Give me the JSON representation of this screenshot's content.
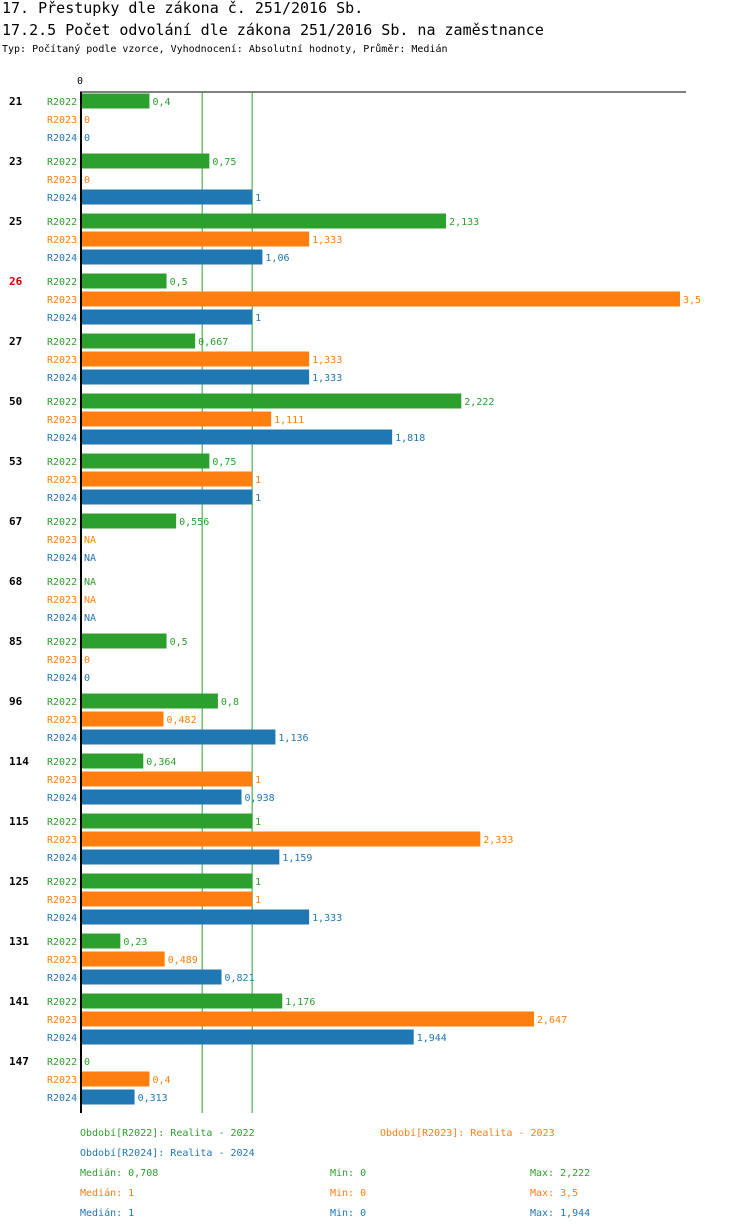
{
  "header": {
    "title": "17. Přestupky dle zákona č. 251/2016 Sb.",
    "subtitle": "17.2.5 Počet odvolání dle zákona 251/2016 Sb. na zaměstnance",
    "type_line": "Typ: Počítaný podle vzorce, Vyhodnocení: Absolutní hodnoty, Průměr: Medián"
  },
  "colors": {
    "R2022": "#2ca02c",
    "R2023": "#ff7f0e",
    "R2024": "#1f77b4",
    "highlight": "#cc0000"
  },
  "chart_data": {
    "type": "bar",
    "orientation": "horizontal",
    "axis_zero_label": "0",
    "xlim": [
      0,
      3.5
    ],
    "series_names": [
      "R2022",
      "R2023",
      "R2024"
    ],
    "highlighted_category": "26",
    "median_lines": [
      0.708,
      1
    ],
    "categories": [
      {
        "name": "21",
        "values": [
          0.4,
          0,
          0
        ],
        "labels": [
          "0,4",
          "0",
          "0"
        ]
      },
      {
        "name": "23",
        "values": [
          0.75,
          0,
          1
        ],
        "labels": [
          "0,75",
          "0",
          "1"
        ]
      },
      {
        "name": "25",
        "values": [
          2.133,
          1.333,
          1.06
        ],
        "labels": [
          "2,133",
          "1,333",
          "1,06"
        ]
      },
      {
        "name": "26",
        "values": [
          0.5,
          3.5,
          1
        ],
        "labels": [
          "0,5",
          "3,5",
          "1"
        ]
      },
      {
        "name": "27",
        "values": [
          0.667,
          1.333,
          1.333
        ],
        "labels": [
          "0,667",
          "1,333",
          "1,333"
        ]
      },
      {
        "name": "50",
        "values": [
          2.222,
          1.111,
          1.818
        ],
        "labels": [
          "2,222",
          "1,111",
          "1,818"
        ]
      },
      {
        "name": "53",
        "values": [
          0.75,
          1,
          1
        ],
        "labels": [
          "0,75",
          "1",
          "1"
        ]
      },
      {
        "name": "67",
        "values": [
          0.556,
          null,
          null
        ],
        "labels": [
          "0,556",
          "NA",
          "NA"
        ]
      },
      {
        "name": "68",
        "values": [
          null,
          null,
          null
        ],
        "labels": [
          "NA",
          "NA",
          "NA"
        ]
      },
      {
        "name": "85",
        "values": [
          0.5,
          0,
          0
        ],
        "labels": [
          "0,5",
          "0",
          "0"
        ]
      },
      {
        "name": "96",
        "values": [
          0.8,
          0.482,
          1.136
        ],
        "labels": [
          "0,8",
          "0,482",
          "1,136"
        ]
      },
      {
        "name": "114",
        "values": [
          0.364,
          1,
          0.938
        ],
        "labels": [
          "0,364",
          "1",
          "0,938"
        ]
      },
      {
        "name": "115",
        "values": [
          1,
          2.333,
          1.159
        ],
        "labels": [
          "1",
          "2,333",
          "1,159"
        ]
      },
      {
        "name": "125",
        "values": [
          1,
          1,
          1.333
        ],
        "labels": [
          "1",
          "1",
          "1,333"
        ]
      },
      {
        "name": "131",
        "values": [
          0.23,
          0.489,
          0.821
        ],
        "labels": [
          "0,23",
          "0,489",
          "0,821"
        ]
      },
      {
        "name": "141",
        "values": [
          1.176,
          2.647,
          1.944
        ],
        "labels": [
          "1,176",
          "2,647",
          "1,944"
        ]
      },
      {
        "name": "147",
        "values": [
          0,
          0.4,
          0.313
        ],
        "labels": [
          "0",
          "0,4",
          "0,313"
        ]
      }
    ]
  },
  "legend": {
    "r2022": "Období[R2022]: Realita - 2022",
    "r2023": "Období[R2023]: Realita - 2023",
    "r2024": "Období[R2024]: Realita - 2024"
  },
  "stats": [
    {
      "median": "Medián: 0,708",
      "min": "Min: 0",
      "max": "Max: 2,222"
    },
    {
      "median": "Medián: 1",
      "min": "Min: 0",
      "max": "Max: 3,5"
    },
    {
      "median": "Medián: 1",
      "min": "Min: 0",
      "max": "Max: 1,944"
    }
  ]
}
